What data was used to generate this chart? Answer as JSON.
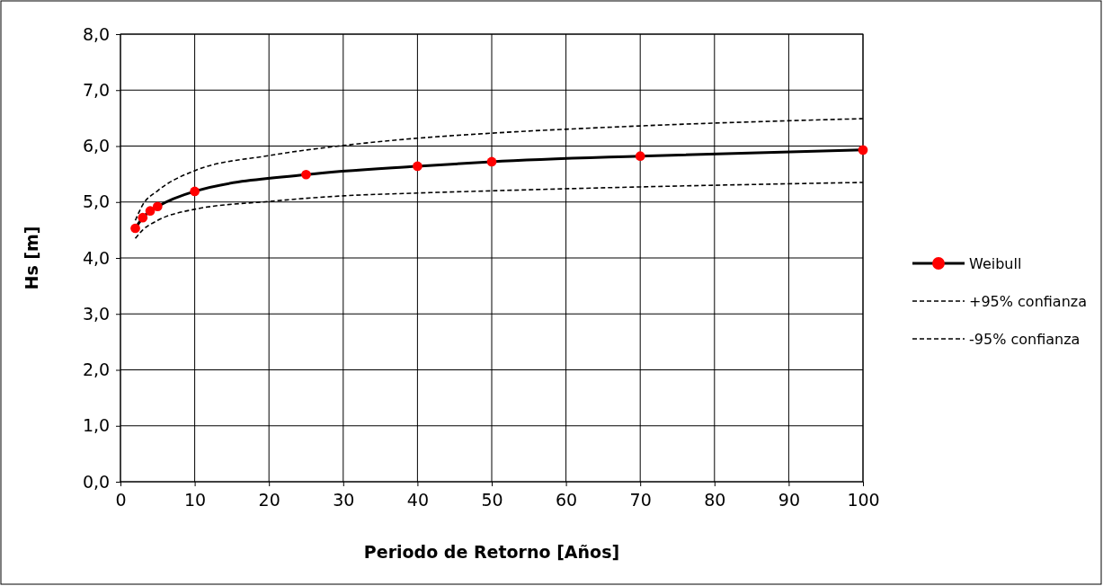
{
  "chart_data": {
    "type": "line",
    "xlabel": "Periodo de Retorno [Años]",
    "ylabel": "Hs [m]",
    "xlim": [
      0,
      100
    ],
    "xticks": [
      0,
      10,
      20,
      30,
      40,
      50,
      60,
      70,
      80,
      90,
      100
    ],
    "ylim": [
      0,
      8
    ],
    "yticks": [
      {
        "value": 0,
        "label": "0,0"
      },
      {
        "value": 1,
        "label": "1,0"
      },
      {
        "value": 2,
        "label": "2,0"
      },
      {
        "value": 3,
        "label": "3,0"
      },
      {
        "value": 4,
        "label": "4,0"
      },
      {
        "value": 5,
        "label": "5,0"
      },
      {
        "value": 6,
        "label": "6,0"
      },
      {
        "value": 7,
        "label": "7,0"
      },
      {
        "value": 8,
        "label": "8,0"
      }
    ],
    "grid": true,
    "legend": "right",
    "series": [
      {
        "name": "Weibull",
        "color": "#000000",
        "colors": [
          "#ff0000",
          "#ff0000",
          "#ff0000",
          "#ff0000",
          "#ff0000",
          "#ff0000",
          "#ff0000",
          "#ff0000",
          "#ff0000",
          "#ff0000"
        ],
        "marker": "circle",
        "line_style": "solid",
        "x": [
          2,
          3,
          4,
          5,
          10,
          25,
          40,
          50,
          70,
          100
        ],
        "values": [
          4.53,
          4.72,
          4.84,
          4.92,
          5.19,
          5.49,
          5.64,
          5.72,
          5.82,
          5.93
        ]
      },
      {
        "name": "+95% confianza",
        "color": "#000000",
        "marker": "none",
        "line_style": "dashed",
        "x": [
          2,
          3,
          5,
          10,
          20,
          30,
          40,
          50,
          70,
          100
        ],
        "values": [
          4.67,
          4.95,
          5.2,
          5.56,
          5.83,
          6.01,
          6.14,
          6.23,
          6.36,
          6.49
        ]
      },
      {
        "name": "-95% confianza",
        "color": "#000000",
        "marker": "none",
        "line_style": "dashed",
        "x": [
          2,
          3,
          5,
          10,
          20,
          30,
          40,
          50,
          70,
          100
        ],
        "values": [
          4.35,
          4.5,
          4.67,
          4.87,
          5.01,
          5.11,
          5.16,
          5.2,
          5.27,
          5.35
        ]
      }
    ]
  }
}
